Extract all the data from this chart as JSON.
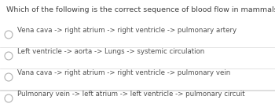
{
  "title": "Which of the following is the correct sequence of blood flow in mammals?",
  "options": [
    "Vena cava -> right atrium -> right ventricle -> pulmonary artery",
    "Left ventricle -> aorta -> Lungs -> systemic circulation",
    "Vana cava -> right atrium -> right ventricle -> pulmonary vein",
    "Pulmonary vein -> left atrium -> left ventricle -> pulmonary circuit"
  ],
  "bg_color": "#ffffff",
  "title_color": "#404040",
  "option_color": "#505050",
  "circle_edge_color": "#b0b0b0",
  "line_color": "#d8d8d8",
  "title_fontsize": 6.8,
  "option_fontsize": 6.2
}
